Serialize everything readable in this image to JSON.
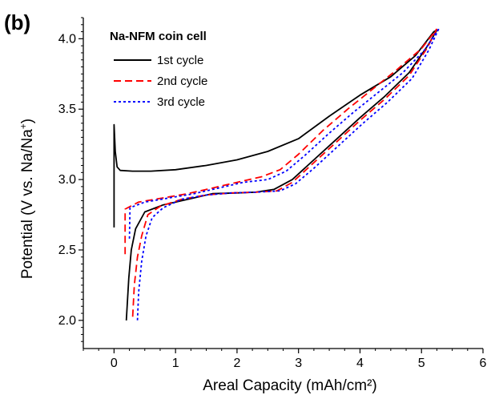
{
  "chart_data": {
    "type": "line",
    "panel_label": "(b)",
    "legend_title": "Na-NFM coin cell",
    "legend_position": "top-left",
    "xlabel": "Areal Capacity (mAh/cm²)",
    "ylabel_main": "Potential (V vs. Na/Na",
    "ylabel_sup": "+",
    "ylabel_close": ")",
    "xlim": [
      -0.5,
      6.0
    ],
    "ylim": [
      1.8,
      4.15
    ],
    "x_ticks": [
      "0",
      "1",
      "2",
      "3",
      "4",
      "5",
      "6"
    ],
    "y_ticks": [
      "2.0",
      "2.5",
      "3.0",
      "3.5",
      "4.0"
    ],
    "grid": false,
    "series": [
      {
        "name": "1st cycle",
        "color": "#000000",
        "dash": "solid",
        "charge": [
          [
            0.0,
            2.66
          ],
          [
            0.0,
            3.39
          ],
          [
            0.02,
            3.2
          ],
          [
            0.05,
            3.09
          ],
          [
            0.1,
            3.065
          ],
          [
            0.3,
            3.06
          ],
          [
            0.6,
            3.06
          ],
          [
            1.0,
            3.07
          ],
          [
            1.5,
            3.1
          ],
          [
            2.0,
            3.14
          ],
          [
            2.5,
            3.2
          ],
          [
            3.0,
            3.29
          ],
          [
            3.5,
            3.45
          ],
          [
            4.0,
            3.6
          ],
          [
            4.5,
            3.73
          ],
          [
            4.9,
            3.88
          ],
          [
            5.2,
            4.05
          ],
          [
            5.25,
            4.06
          ]
        ],
        "discharge": [
          [
            5.25,
            4.06
          ],
          [
            5.1,
            3.95
          ],
          [
            4.8,
            3.76
          ],
          [
            4.4,
            3.59
          ],
          [
            4.0,
            3.44
          ],
          [
            3.6,
            3.28
          ],
          [
            3.2,
            3.12
          ],
          [
            2.9,
            3.0
          ],
          [
            2.6,
            2.93
          ],
          [
            2.3,
            2.91
          ],
          [
            2.0,
            2.905
          ],
          [
            1.6,
            2.9
          ],
          [
            1.2,
            2.86
          ],
          [
            0.8,
            2.82
          ],
          [
            0.5,
            2.77
          ],
          [
            0.35,
            2.65
          ],
          [
            0.28,
            2.5
          ],
          [
            0.24,
            2.3
          ],
          [
            0.2,
            2.0
          ]
        ]
      },
      {
        "name": "2nd cycle",
        "color": "#ff0000",
        "dash": "dashed",
        "charge": [
          [
            0.18,
            2.47
          ],
          [
            0.18,
            2.79
          ],
          [
            0.4,
            2.84
          ],
          [
            0.8,
            2.87
          ],
          [
            1.2,
            2.9
          ],
          [
            1.6,
            2.94
          ],
          [
            2.0,
            2.98
          ],
          [
            2.4,
            3.02
          ],
          [
            2.7,
            3.07
          ],
          [
            3.0,
            3.18
          ],
          [
            3.4,
            3.35
          ],
          [
            3.8,
            3.5
          ],
          [
            4.2,
            3.64
          ],
          [
            4.6,
            3.78
          ],
          [
            5.0,
            3.93
          ],
          [
            5.25,
            4.07
          ]
        ],
        "discharge": [
          [
            5.25,
            4.07
          ],
          [
            5.1,
            3.94
          ],
          [
            4.8,
            3.74
          ],
          [
            4.4,
            3.57
          ],
          [
            4.0,
            3.42
          ],
          [
            3.6,
            3.26
          ],
          [
            3.2,
            3.1
          ],
          [
            2.9,
            2.98
          ],
          [
            2.65,
            2.92
          ],
          [
            2.3,
            2.91
          ],
          [
            1.9,
            2.905
          ],
          [
            1.5,
            2.89
          ],
          [
            1.1,
            2.86
          ],
          [
            0.75,
            2.81
          ],
          [
            0.55,
            2.75
          ],
          [
            0.45,
            2.6
          ],
          [
            0.38,
            2.45
          ],
          [
            0.33,
            2.25
          ],
          [
            0.3,
            2.0
          ]
        ]
      },
      {
        "name": "3rd cycle",
        "color": "#0000ff",
        "dash": "dotted",
        "charge": [
          [
            0.25,
            2.58
          ],
          [
            0.26,
            2.8
          ],
          [
            0.5,
            2.84
          ],
          [
            0.9,
            2.87
          ],
          [
            1.3,
            2.9
          ],
          [
            1.7,
            2.94
          ],
          [
            2.1,
            2.98
          ],
          [
            2.5,
            3.0
          ],
          [
            2.8,
            3.06
          ],
          [
            3.1,
            3.17
          ],
          [
            3.5,
            3.33
          ],
          [
            3.9,
            3.48
          ],
          [
            4.3,
            3.62
          ],
          [
            4.7,
            3.76
          ],
          [
            5.05,
            3.92
          ],
          [
            5.28,
            4.07
          ]
        ],
        "discharge": [
          [
            5.28,
            4.07
          ],
          [
            5.12,
            3.92
          ],
          [
            4.85,
            3.72
          ],
          [
            4.45,
            3.55
          ],
          [
            4.05,
            3.4
          ],
          [
            3.65,
            3.24
          ],
          [
            3.25,
            3.08
          ],
          [
            2.95,
            2.97
          ],
          [
            2.7,
            2.92
          ],
          [
            2.3,
            2.91
          ],
          [
            1.9,
            2.905
          ],
          [
            1.5,
            2.89
          ],
          [
            1.1,
            2.86
          ],
          [
            0.8,
            2.8
          ],
          [
            0.62,
            2.73
          ],
          [
            0.52,
            2.6
          ],
          [
            0.45,
            2.42
          ],
          [
            0.4,
            2.2
          ],
          [
            0.38,
            2.0
          ]
        ]
      }
    ]
  }
}
